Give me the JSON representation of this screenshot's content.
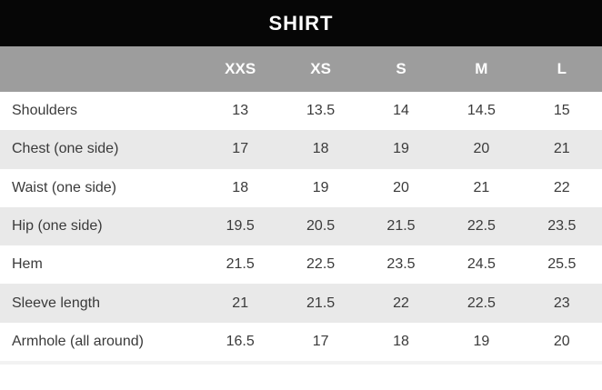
{
  "title": "SHIRT",
  "colors": {
    "title_bar_bg": "#060606",
    "title_text": "#ffffff",
    "header_row_bg": "#9d9d9d",
    "header_text": "#ffffff",
    "row_alt_bg": "#e9e9e9",
    "row_bg": "#ffffff",
    "body_text": "#3a3a3a"
  },
  "chart_data": {
    "type": "table",
    "title": "SHIRT",
    "columns": [
      "XXS",
      "XS",
      "S",
      "M",
      "L"
    ],
    "rows": [
      {
        "label": "Shoulders",
        "values": [
          13,
          13.5,
          14,
          14.5,
          15
        ]
      },
      {
        "label": "Chest (one side)",
        "values": [
          17,
          18,
          19,
          20,
          21
        ]
      },
      {
        "label": "Waist (one side)",
        "values": [
          18,
          19,
          20,
          21,
          22
        ]
      },
      {
        "label": "Hip (one side)",
        "values": [
          19.5,
          20.5,
          21.5,
          22.5,
          23.5
        ]
      },
      {
        "label": "Hem",
        "values": [
          21.5,
          22.5,
          23.5,
          24.5,
          25.5
        ]
      },
      {
        "label": "Sleeve length",
        "values": [
          21,
          21.5,
          22,
          22.5,
          23
        ]
      },
      {
        "label": "Armhole (all around)",
        "values": [
          16.5,
          17,
          18,
          19,
          20
        ]
      }
    ]
  }
}
